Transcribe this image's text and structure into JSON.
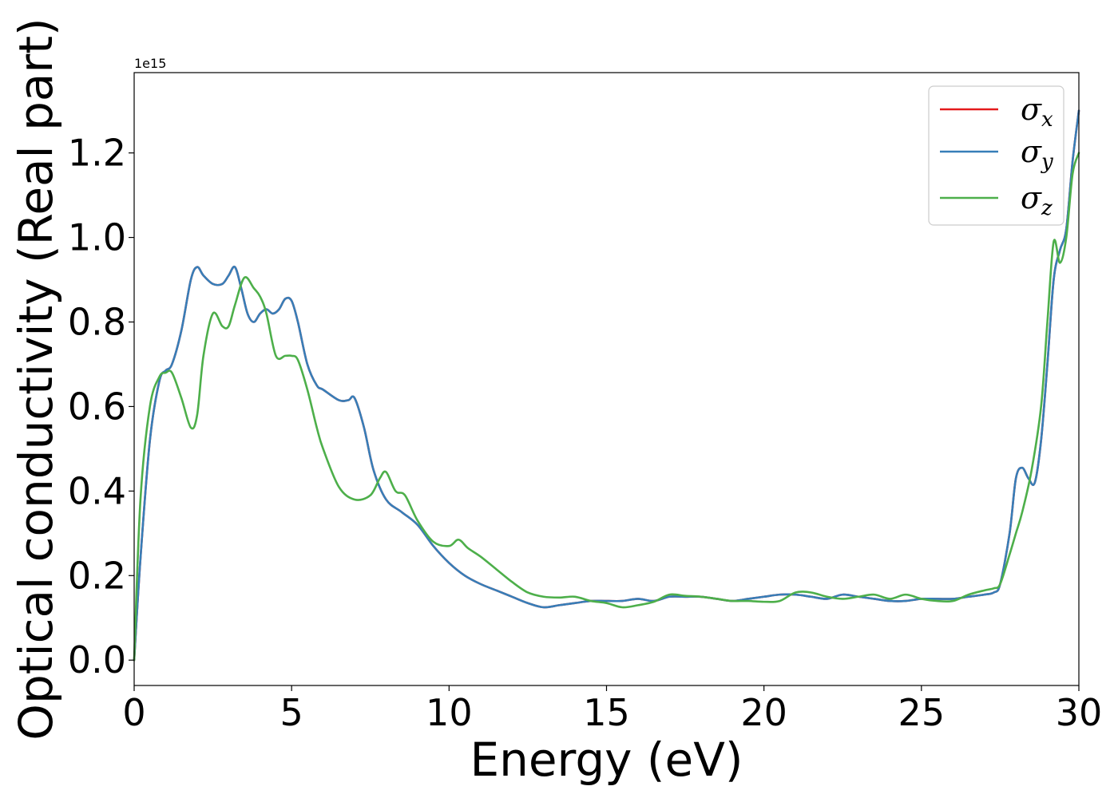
{
  "chart_data": {
    "type": "line",
    "xlabel": "Energy (eV)",
    "ylabel": "Optical conductivity (Real part)",
    "y_offset_text": "1e15",
    "xlim": [
      0,
      30
    ],
    "ylim": [
      -0.06,
      1.39
    ],
    "xticks": [
      0,
      5,
      10,
      15,
      20,
      25,
      30
    ],
    "xtick_labels": [
      "0",
      "5",
      "10",
      "15",
      "20",
      "25",
      "30"
    ],
    "yticks": [
      0.0,
      0.2,
      0.4,
      0.6,
      0.8,
      1.0,
      1.2
    ],
    "ytick_labels": [
      "0.0",
      "0.2",
      "0.4",
      "0.6",
      "0.8",
      "1.0",
      "1.2"
    ],
    "grid": false,
    "legend_position": "top-right",
    "series": [
      {
        "name": "σx",
        "symbol": "σ",
        "subscript": "x",
        "color": "#e41a1c",
        "x": [
          0,
          0.2,
          0.5,
          0.8,
          1.0,
          1.2,
          1.5,
          1.8,
          2.0,
          2.2,
          2.5,
          2.8,
          3.0,
          3.2,
          3.4,
          3.6,
          3.8,
          4.0,
          4.2,
          4.4,
          4.6,
          4.8,
          5.0,
          5.2,
          5.5,
          5.8,
          6.0,
          6.5,
          6.8,
          7.0,
          7.3,
          7.6,
          8.0,
          8.5,
          9.0,
          9.5,
          10.0,
          10.5,
          11.0,
          11.5,
          12.0,
          12.5,
          13.0,
          13.5,
          14.0,
          14.5,
          15.0,
          15.5,
          16.0,
          16.5,
          17.0,
          17.5,
          18.0,
          18.5,
          19.0,
          19.5,
          20.0,
          20.5,
          21.0,
          21.5,
          22.0,
          22.5,
          23.0,
          23.5,
          24.0,
          24.5,
          25.0,
          25.5,
          26.0,
          26.5,
          27.0,
          27.3,
          27.5,
          27.8,
          28.0,
          28.2,
          28.4,
          28.6,
          28.8,
          29.0,
          29.2,
          29.4,
          29.6,
          29.8,
          30.0
        ],
        "values": [
          0.0,
          0.24,
          0.52,
          0.66,
          0.685,
          0.7,
          0.78,
          0.9,
          0.93,
          0.91,
          0.89,
          0.89,
          0.91,
          0.93,
          0.88,
          0.82,
          0.8,
          0.82,
          0.83,
          0.82,
          0.83,
          0.855,
          0.85,
          0.8,
          0.7,
          0.65,
          0.64,
          0.615,
          0.615,
          0.62,
          0.55,
          0.45,
          0.38,
          0.35,
          0.32,
          0.27,
          0.23,
          0.2,
          0.18,
          0.165,
          0.15,
          0.135,
          0.125,
          0.13,
          0.135,
          0.14,
          0.14,
          0.14,
          0.145,
          0.14,
          0.15,
          0.15,
          0.15,
          0.145,
          0.14,
          0.145,
          0.15,
          0.155,
          0.155,
          0.15,
          0.145,
          0.155,
          0.15,
          0.145,
          0.14,
          0.14,
          0.145,
          0.145,
          0.145,
          0.15,
          0.155,
          0.16,
          0.18,
          0.3,
          0.43,
          0.455,
          0.43,
          0.42,
          0.52,
          0.7,
          0.9,
          0.97,
          1.02,
          1.18,
          1.3
        ]
      },
      {
        "name": "σy",
        "symbol": "σ",
        "subscript": "y",
        "color": "#377eb8",
        "x": [
          0,
          0.2,
          0.5,
          0.8,
          1.0,
          1.2,
          1.5,
          1.8,
          2.0,
          2.2,
          2.5,
          2.8,
          3.0,
          3.2,
          3.4,
          3.6,
          3.8,
          4.0,
          4.2,
          4.4,
          4.6,
          4.8,
          5.0,
          5.2,
          5.5,
          5.8,
          6.0,
          6.5,
          6.8,
          7.0,
          7.3,
          7.6,
          8.0,
          8.5,
          9.0,
          9.5,
          10.0,
          10.5,
          11.0,
          11.5,
          12.0,
          12.5,
          13.0,
          13.5,
          14.0,
          14.5,
          15.0,
          15.5,
          16.0,
          16.5,
          17.0,
          17.5,
          18.0,
          18.5,
          19.0,
          19.5,
          20.0,
          20.5,
          21.0,
          21.5,
          22.0,
          22.5,
          23.0,
          23.5,
          24.0,
          24.5,
          25.0,
          25.5,
          26.0,
          26.5,
          27.0,
          27.3,
          27.5,
          27.8,
          28.0,
          28.2,
          28.4,
          28.6,
          28.8,
          29.0,
          29.2,
          29.4,
          29.6,
          29.8,
          30.0
        ],
        "values": [
          0.0,
          0.24,
          0.52,
          0.66,
          0.685,
          0.7,
          0.78,
          0.9,
          0.93,
          0.91,
          0.89,
          0.89,
          0.91,
          0.93,
          0.88,
          0.82,
          0.8,
          0.82,
          0.83,
          0.82,
          0.83,
          0.855,
          0.85,
          0.8,
          0.7,
          0.65,
          0.64,
          0.615,
          0.615,
          0.62,
          0.55,
          0.45,
          0.38,
          0.35,
          0.32,
          0.27,
          0.23,
          0.2,
          0.18,
          0.165,
          0.15,
          0.135,
          0.125,
          0.13,
          0.135,
          0.14,
          0.14,
          0.14,
          0.145,
          0.14,
          0.15,
          0.15,
          0.15,
          0.145,
          0.14,
          0.145,
          0.15,
          0.155,
          0.155,
          0.15,
          0.145,
          0.155,
          0.15,
          0.145,
          0.14,
          0.14,
          0.145,
          0.145,
          0.145,
          0.15,
          0.155,
          0.16,
          0.18,
          0.3,
          0.43,
          0.455,
          0.43,
          0.42,
          0.52,
          0.7,
          0.9,
          0.97,
          1.02,
          1.18,
          1.3
        ]
      },
      {
        "name": "σz",
        "symbol": "σ",
        "subscript": "z",
        "color": "#4daf4a",
        "x": [
          0,
          0.2,
          0.5,
          0.8,
          1.0,
          1.2,
          1.5,
          1.8,
          2.0,
          2.2,
          2.5,
          2.8,
          3.0,
          3.2,
          3.5,
          3.8,
          4.0,
          4.2,
          4.5,
          4.8,
          5.0,
          5.2,
          5.5,
          5.8,
          6.0,
          6.5,
          7.0,
          7.5,
          7.8,
          8.0,
          8.3,
          8.6,
          9.0,
          9.5,
          10.0,
          10.3,
          10.6,
          11.0,
          11.5,
          12.0,
          12.5,
          13.0,
          13.5,
          14.0,
          14.5,
          15.0,
          15.5,
          16.0,
          16.5,
          17.0,
          17.5,
          18.0,
          18.5,
          19.0,
          19.5,
          20.0,
          20.5,
          21.0,
          21.5,
          22.0,
          22.5,
          23.0,
          23.5,
          24.0,
          24.5,
          25.0,
          25.5,
          26.0,
          26.5,
          27.0,
          27.3,
          27.5,
          27.8,
          28.0,
          28.2,
          28.5,
          28.8,
          29.0,
          29.2,
          29.4,
          29.6,
          29.8,
          30.0
        ],
        "values": [
          0.0,
          0.38,
          0.6,
          0.67,
          0.68,
          0.68,
          0.62,
          0.55,
          0.58,
          0.72,
          0.82,
          0.79,
          0.79,
          0.84,
          0.905,
          0.88,
          0.86,
          0.82,
          0.72,
          0.72,
          0.72,
          0.71,
          0.64,
          0.55,
          0.5,
          0.41,
          0.38,
          0.39,
          0.43,
          0.445,
          0.4,
          0.39,
          0.33,
          0.28,
          0.27,
          0.285,
          0.265,
          0.245,
          0.215,
          0.185,
          0.16,
          0.15,
          0.148,
          0.15,
          0.14,
          0.135,
          0.125,
          0.13,
          0.138,
          0.155,
          0.152,
          0.15,
          0.145,
          0.14,
          0.14,
          0.138,
          0.14,
          0.16,
          0.16,
          0.15,
          0.145,
          0.15,
          0.155,
          0.145,
          0.155,
          0.145,
          0.14,
          0.14,
          0.155,
          0.165,
          0.17,
          0.18,
          0.25,
          0.3,
          0.35,
          0.45,
          0.6,
          0.8,
          0.99,
          0.94,
          1.0,
          1.15,
          1.2
        ]
      }
    ]
  }
}
